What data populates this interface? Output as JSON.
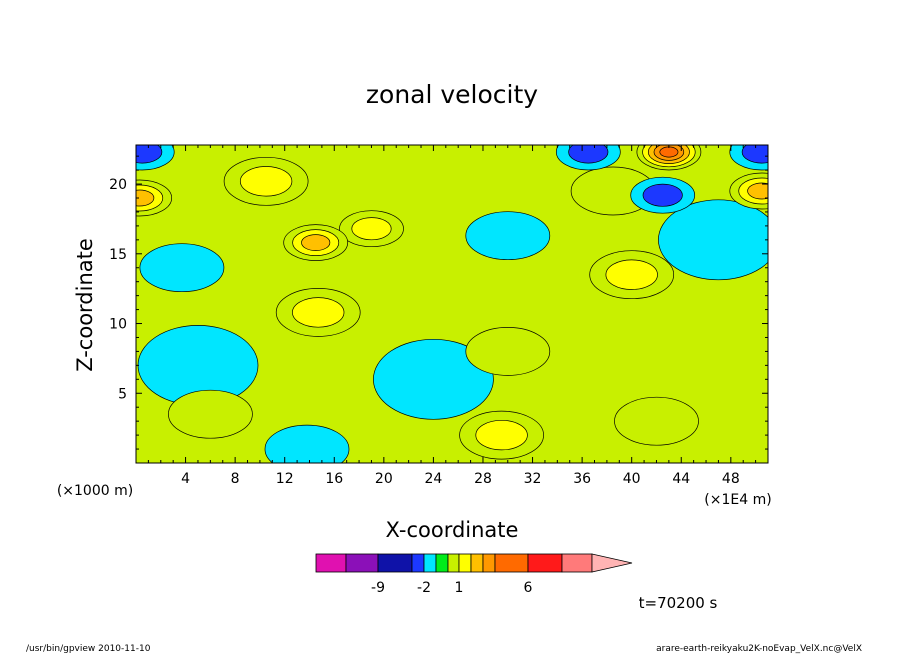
{
  "chart_data": {
    "type": "heatmap",
    "title": "zonal velocity",
    "xlabel": "X-coordinate",
    "ylabel": "Z-coordinate",
    "x_unit_left": "(×1000 m)",
    "x_unit_right": "(×1E4 m)",
    "xlim": [
      0,
      51
    ],
    "ylim": [
      0,
      22.8
    ],
    "x_ticks": [
      4,
      8,
      12,
      16,
      20,
      24,
      28,
      32,
      36,
      40,
      44,
      48
    ],
    "y_ticks": [
      5,
      10,
      15,
      20
    ],
    "time_label": "t=70200 s",
    "colorbar": {
      "levels": [
        -12,
        -9,
        -6,
        -2,
        -1,
        0,
        1,
        2,
        3,
        4,
        6,
        9,
        12
      ],
      "labels": [
        "-9",
        "-2",
        "1",
        "6"
      ],
      "label_values": [
        -9,
        -2,
        1,
        6
      ],
      "colors": [
        "#e011b0",
        "#8b10b8",
        "#0f12a8",
        "#1c38ff",
        "#00e6ff",
        "#00ec1a",
        "#c8f000",
        "#ffff00",
        "#ffc000",
        "#ff9800",
        "#ff6a00",
        "#ff1a1a",
        "#ff7a7a"
      ],
      "overflow_color": "#ffb4b4"
    },
    "field_features": [
      {
        "x": 13.8,
        "z": 1.0,
        "value": -1.5
      },
      {
        "x": 42.5,
        "z": 19.2,
        "value": -4.5
      },
      {
        "x": 30.0,
        "z": 16.3,
        "value": -1.5
      },
      {
        "x": 3.7,
        "z": 14.0,
        "value": -1.5
      },
      {
        "x": 0.5,
        "z": 22.3,
        "value": -4.0
      },
      {
        "x": 36.5,
        "z": 22.3,
        "value": -4.0
      },
      {
        "x": 50.5,
        "z": 22.3,
        "value": -4.0
      },
      {
        "x": 43.0,
        "z": 22.3,
        "value": 7.0
      },
      {
        "x": 14.5,
        "z": 15.8,
        "value": 3.5
      },
      {
        "x": 19.0,
        "z": 16.8,
        "value": 2.5
      },
      {
        "x": 14.7,
        "z": 10.8,
        "value": 2.3
      },
      {
        "x": 40.0,
        "z": 13.5,
        "value": 2.3
      },
      {
        "x": 0.3,
        "z": 19.0,
        "value": 3.5
      },
      {
        "x": 50.5,
        "z": 19.5,
        "value": 3.5
      },
      {
        "x": 10.5,
        "z": 20.2,
        "value": 2.3
      },
      {
        "x": 29.5,
        "z": 2.0,
        "value": 2.0
      },
      {
        "x": 42.0,
        "z": 3.0,
        "value": 1.5
      },
      {
        "x": 30.0,
        "z": 8.0,
        "value": 1.5
      },
      {
        "x": 5.0,
        "z": 7.0,
        "value": -0.3
      },
      {
        "x": 24.0,
        "z": 6.0,
        "value": -0.3
      },
      {
        "x": 47.0,
        "z": 16.0,
        "value": -0.3
      },
      {
        "x": 6.0,
        "z": 3.5,
        "value": 1.5
      },
      {
        "x": 38.5,
        "z": 19.5,
        "value": 1.5
      }
    ]
  },
  "footer": {
    "left": "/usr/bin/gpview  2010-11-10",
    "right": "arare-earth-reikyaku2K-noEvap_VelX.nc@VelX"
  }
}
